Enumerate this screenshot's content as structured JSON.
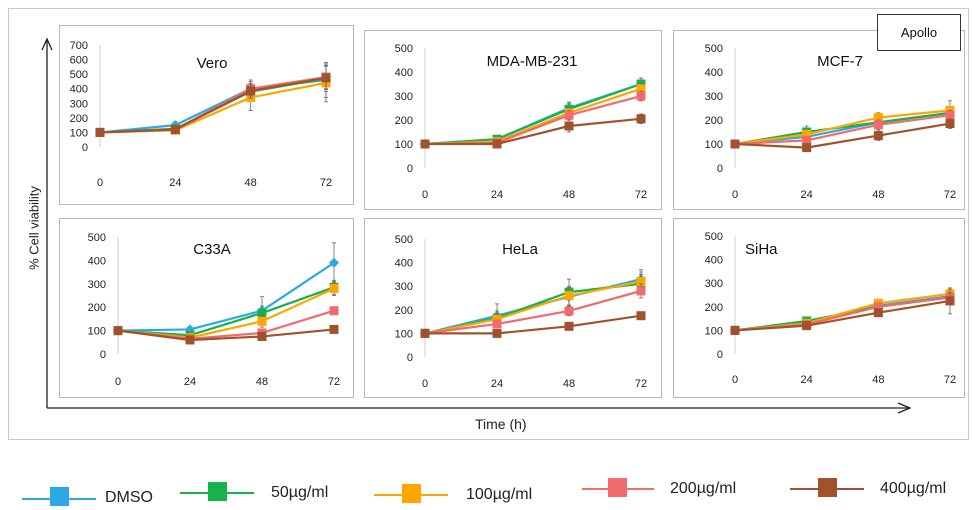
{
  "figure": {
    "tag": "Apollo",
    "ylabel": "% Cell viability",
    "xlabel": "Time (h)"
  },
  "colors": {
    "DMSO": "#29a9e6",
    "50": "#17b24a",
    "100": "#ffa500",
    "200": "#f06b6b",
    "400": "#a0522d"
  },
  "chart_data": [
    {
      "type": "line",
      "title": "Vero",
      "x": [
        0,
        24,
        48,
        72
      ],
      "xlim": [
        0,
        72
      ],
      "ylim": [
        0,
        700
      ],
      "yticks": [
        0,
        100,
        200,
        300,
        400,
        500,
        600,
        700
      ],
      "series": [
        {
          "name": "DMSO",
          "key": "DMSO",
          "values": [
            100,
            150,
            400,
            460
          ],
          "errors": [
            0,
            25,
            60,
            120
          ]
        },
        {
          "name": "50µg/ml",
          "key": "50",
          "values": [
            100,
            125,
            380,
            470
          ],
          "errors": [
            0,
            15,
            40,
            90
          ]
        },
        {
          "name": "100µg/ml",
          "key": "100",
          "values": [
            100,
            115,
            340,
            440
          ],
          "errors": [
            0,
            15,
            90,
            130
          ]
        },
        {
          "name": "200µg/ml",
          "key": "200",
          "values": [
            100,
            120,
            400,
            480
          ],
          "errors": [
            0,
            15,
            50,
            80
          ]
        },
        {
          "name": "400µg/ml",
          "key": "400",
          "values": [
            100,
            120,
            385,
            475
          ],
          "errors": [
            0,
            15,
            50,
            80
          ]
        }
      ]
    },
    {
      "type": "line",
      "title": "MDA-MB-231",
      "x": [
        0,
        24,
        48,
        72
      ],
      "xlim": [
        0,
        72
      ],
      "ylim": [
        0,
        500
      ],
      "yticks": [
        0,
        100,
        200,
        300,
        400,
        500
      ],
      "series": [
        {
          "name": "DMSO",
          "key": "DMSO",
          "values": [
            100,
            120,
            250,
            350
          ],
          "errors": [
            0,
            10,
            20,
            25
          ]
        },
        {
          "name": "50µg/ml",
          "key": "50",
          "values": [
            100,
            120,
            245,
            350
          ],
          "errors": [
            0,
            10,
            30,
            25
          ]
        },
        {
          "name": "100µg/ml",
          "key": "100",
          "values": [
            100,
            110,
            230,
            330
          ],
          "errors": [
            0,
            10,
            20,
            20
          ]
        },
        {
          "name": "200µg/ml",
          "key": "200",
          "values": [
            100,
            105,
            220,
            300
          ],
          "errors": [
            0,
            10,
            20,
            20
          ]
        },
        {
          "name": "400µg/ml",
          "key": "400",
          "values": [
            100,
            100,
            175,
            205
          ],
          "errors": [
            0,
            10,
            25,
            20
          ]
        }
      ]
    },
    {
      "type": "line",
      "title": "MCF-7",
      "x": [
        0,
        24,
        48,
        72
      ],
      "xlim": [
        0,
        72
      ],
      "ylim": [
        0,
        500
      ],
      "yticks": [
        0,
        100,
        200,
        300,
        400,
        500
      ],
      "series": [
        {
          "name": "DMSO",
          "key": "DMSO",
          "values": [
            100,
            130,
            190,
            230
          ],
          "errors": [
            0,
            15,
            20,
            20
          ]
        },
        {
          "name": "50µg/ml",
          "key": "50",
          "values": [
            100,
            150,
            190,
            230
          ],
          "errors": [
            0,
            25,
            20,
            20
          ]
        },
        {
          "name": "100µg/ml",
          "key": "100",
          "values": [
            100,
            140,
            210,
            240
          ],
          "errors": [
            0,
            15,
            20,
            40
          ]
        },
        {
          "name": "200µg/ml",
          "key": "200",
          "values": [
            100,
            115,
            180,
            220
          ],
          "errors": [
            0,
            10,
            20,
            20
          ]
        },
        {
          "name": "400µg/ml",
          "key": "400",
          "values": [
            100,
            85,
            135,
            185
          ],
          "errors": [
            0,
            10,
            20,
            20
          ]
        }
      ]
    },
    {
      "type": "line",
      "title": "C33A",
      "x": [
        0,
        24,
        48,
        72
      ],
      "xlim": [
        0,
        72
      ],
      "ylim": [
        0,
        500
      ],
      "yticks": [
        0,
        100,
        200,
        300,
        400,
        500
      ],
      "series": [
        {
          "name": "DMSO",
          "key": "DMSO",
          "values": [
            100,
            105,
            185,
            390
          ],
          "errors": [
            0,
            10,
            60,
            85
          ]
        },
        {
          "name": "50µg/ml",
          "key": "50",
          "values": [
            100,
            80,
            175,
            285
          ],
          "errors": [
            0,
            10,
            30,
            30
          ]
        },
        {
          "name": "100µg/ml",
          "key": "100",
          "values": [
            100,
            70,
            140,
            280
          ],
          "errors": [
            0,
            10,
            25,
            30
          ]
        },
        {
          "name": "200µg/ml",
          "key": "200",
          "values": [
            100,
            65,
            90,
            185
          ],
          "errors": [
            0,
            10,
            15,
            15
          ]
        },
        {
          "name": "400µg/ml",
          "key": "400",
          "values": [
            100,
            60,
            75,
            105
          ],
          "errors": [
            0,
            10,
            10,
            10
          ]
        }
      ]
    },
    {
      "type": "line",
      "title": "HeLa",
      "x": [
        0,
        24,
        48,
        72
      ],
      "xlim": [
        0,
        72
      ],
      "ylim": [
        0,
        500
      ],
      "yticks": [
        0,
        100,
        200,
        300,
        400,
        500
      ],
      "series": [
        {
          "name": "DMSO",
          "key": "DMSO",
          "values": [
            100,
            175,
            255,
            330
          ],
          "errors": [
            0,
            50,
            40,
            40
          ]
        },
        {
          "name": "50µg/ml",
          "key": "50",
          "values": [
            100,
            165,
            275,
            310
          ],
          "errors": [
            0,
            30,
            55,
            40
          ]
        },
        {
          "name": "100µg/ml",
          "key": "100",
          "values": [
            100,
            160,
            260,
            320
          ],
          "errors": [
            0,
            25,
            40,
            40
          ]
        },
        {
          "name": "200µg/ml",
          "key": "200",
          "values": [
            100,
            140,
            195,
            280
          ],
          "errors": [
            0,
            15,
            20,
            30
          ]
        },
        {
          "name": "400µg/ml",
          "key": "400",
          "values": [
            100,
            100,
            130,
            175
          ],
          "errors": [
            0,
            10,
            10,
            10
          ]
        }
      ]
    },
    {
      "type": "line",
      "title": "SiHa",
      "x": [
        0,
        24,
        48,
        72
      ],
      "xlim": [
        0,
        72
      ],
      "ylim": [
        0,
        500
      ],
      "yticks": [
        0,
        100,
        200,
        300,
        400,
        500
      ],
      "series": [
        {
          "name": "DMSO",
          "key": "DMSO",
          "values": [
            100,
            135,
            205,
            245
          ],
          "errors": [
            0,
            10,
            15,
            20
          ]
        },
        {
          "name": "50µg/ml",
          "key": "50",
          "values": [
            100,
            140,
            200,
            240
          ],
          "errors": [
            0,
            10,
            15,
            20
          ]
        },
        {
          "name": "100µg/ml",
          "key": "100",
          "values": [
            100,
            130,
            215,
            255
          ],
          "errors": [
            0,
            10,
            15,
            20
          ]
        },
        {
          "name": "200µg/ml",
          "key": "200",
          "values": [
            100,
            125,
            200,
            240
          ],
          "errors": [
            0,
            10,
            15,
            20
          ]
        },
        {
          "name": "400µg/ml",
          "key": "400",
          "values": [
            100,
            120,
            175,
            225
          ],
          "errors": [
            0,
            10,
            15,
            55
          ]
        }
      ]
    }
  ],
  "legend": [
    {
      "label": "DMSO",
      "key": "DMSO"
    },
    {
      "label": "50µg/ml",
      "key": "50"
    },
    {
      "label": "100µg/ml",
      "key": "100"
    },
    {
      "label": "200µg/ml",
      "key": "200"
    },
    {
      "label": "400µg/ml",
      "key": "400"
    }
  ]
}
